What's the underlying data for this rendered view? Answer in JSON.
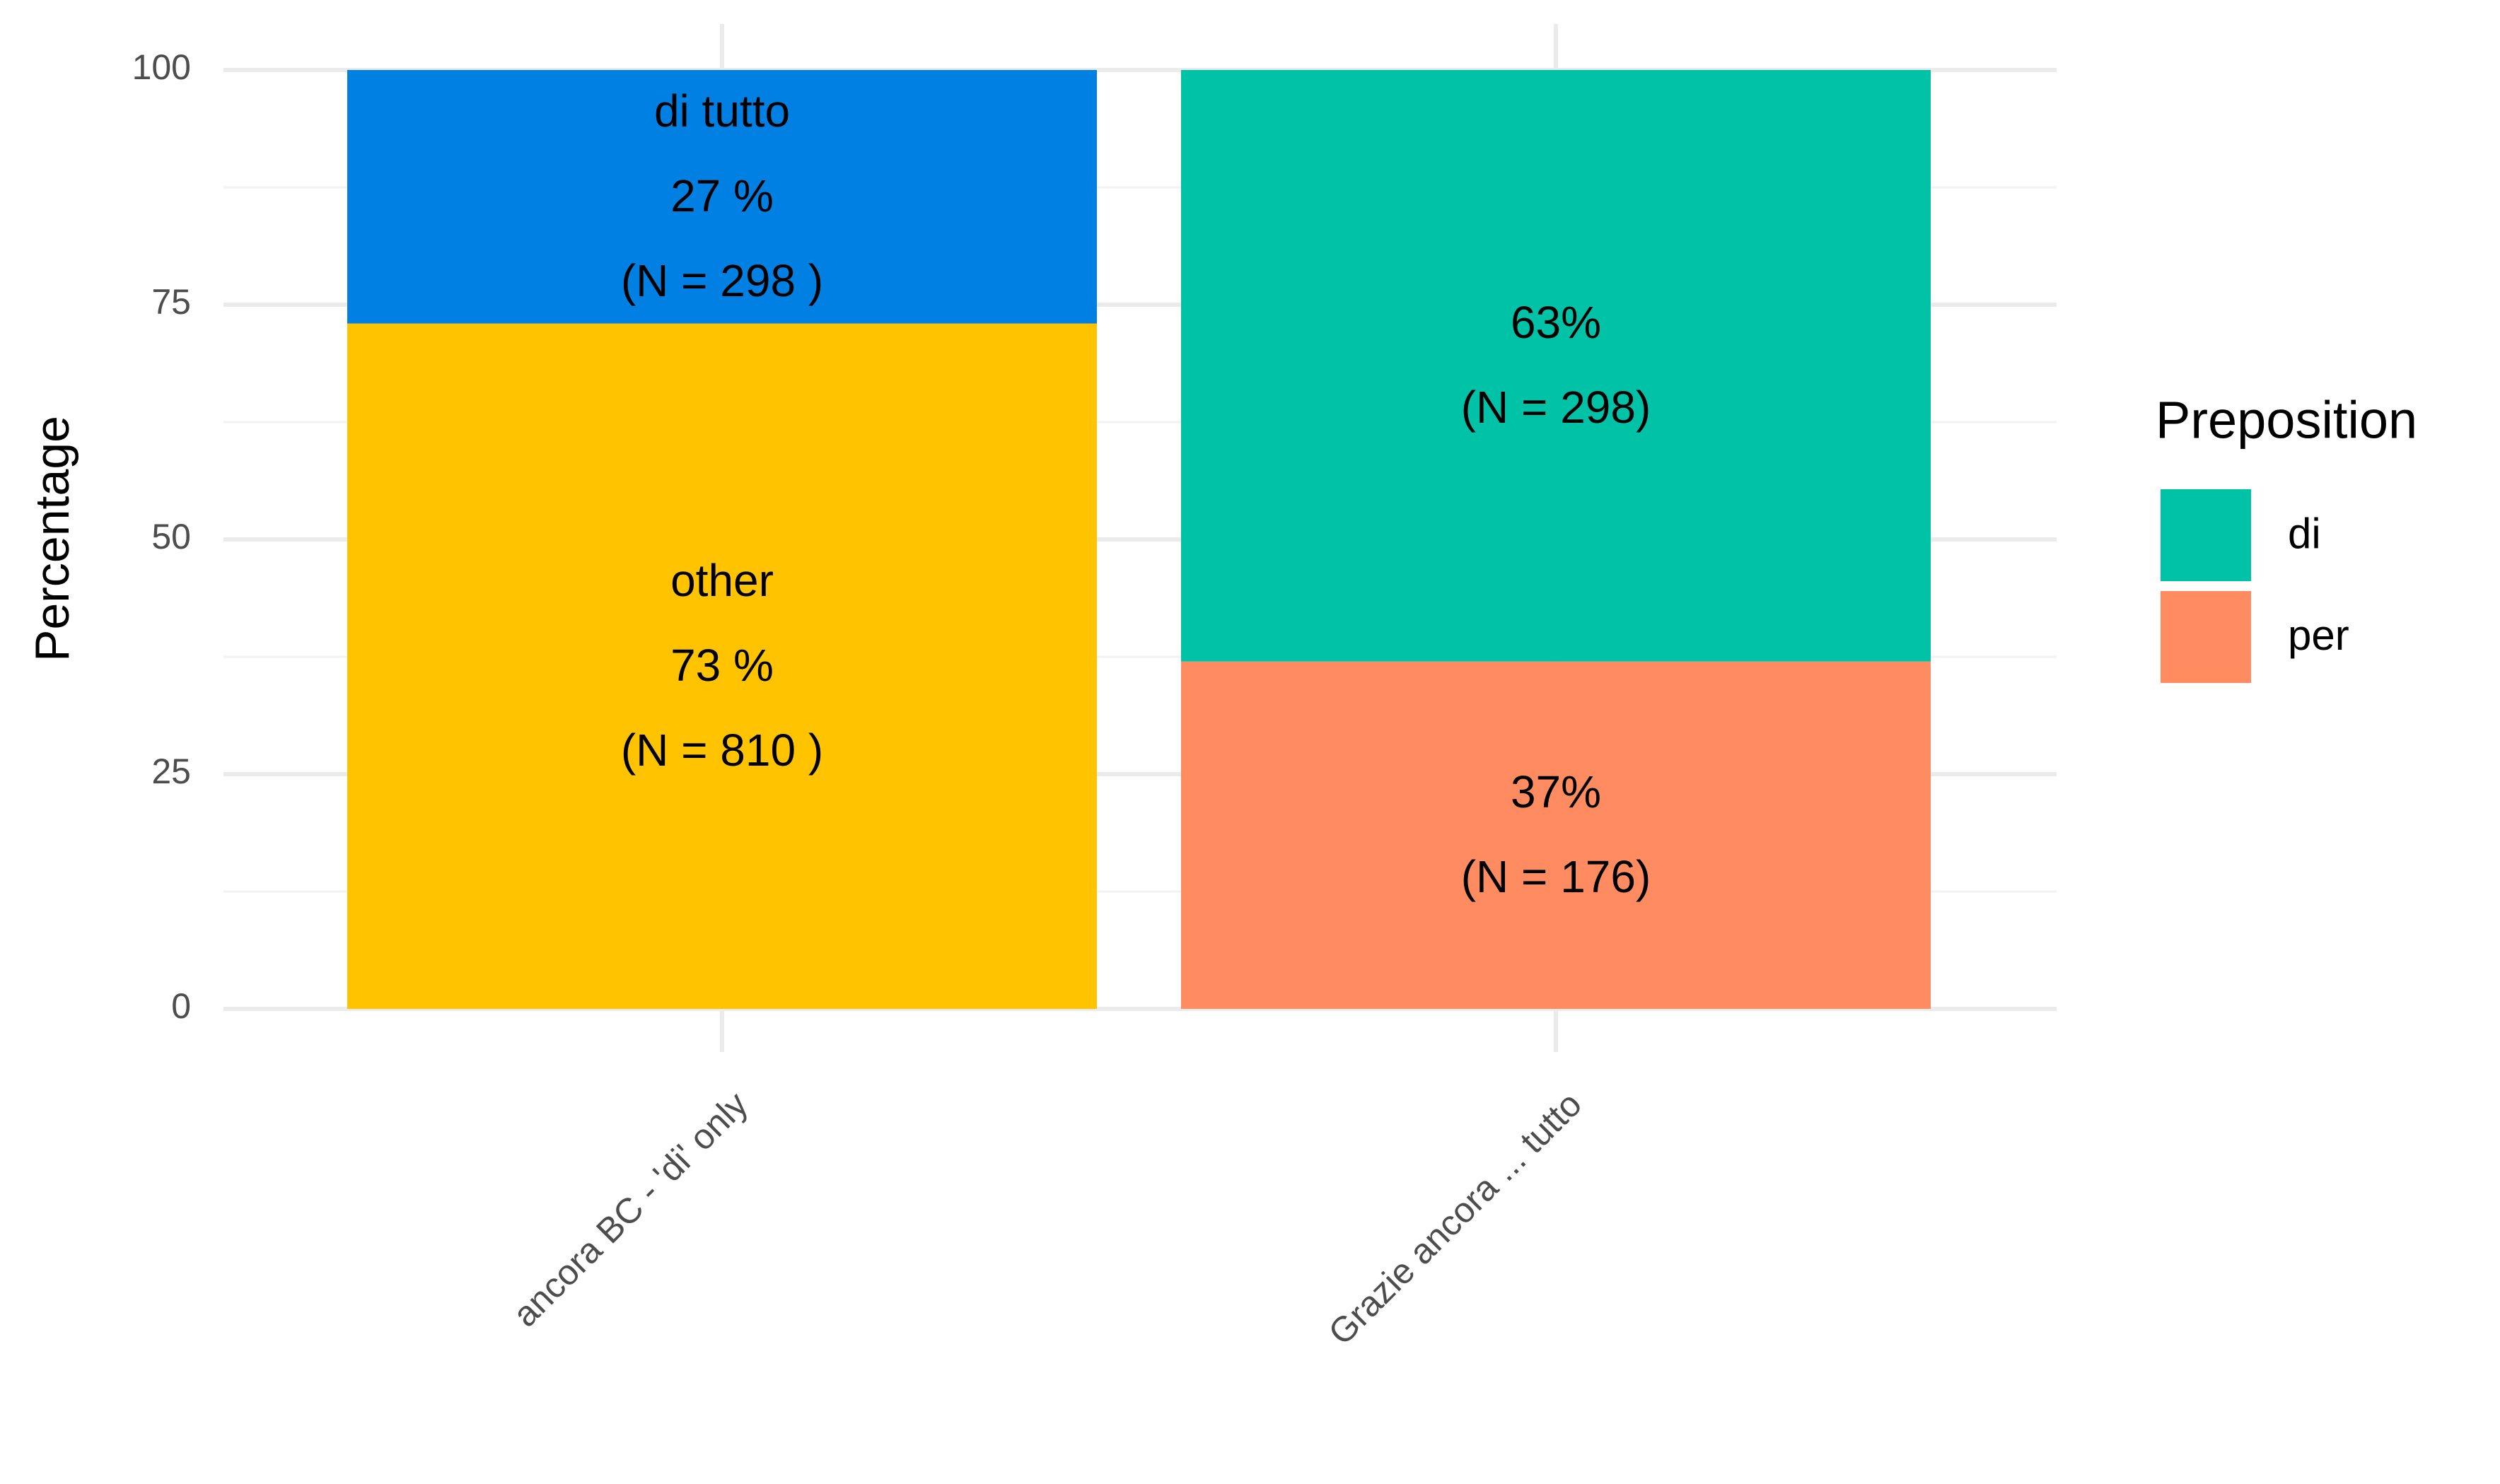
{
  "chart_data": {
    "type": "stacked_bar",
    "categories": [
      "ancora BC - 'di' only",
      "Grazie ancora ... tutto"
    ],
    "series": [
      {
        "name": "di tutto",
        "color": "#0080e3",
        "legend": false,
        "values": [
          27,
          null
        ],
        "value_labels": [
          [
            "di tutto",
            "27 %",
            "(N =  298 )"
          ],
          null
        ]
      },
      {
        "name": "other",
        "color": "#ffc300",
        "legend": false,
        "values": [
          73,
          null
        ],
        "value_labels": [
          [
            "other",
            "73 %",
            "(N =  810 )"
          ],
          null
        ]
      },
      {
        "name": "di",
        "color": "#00c2a6",
        "legend": true,
        "values": [
          null,
          63
        ],
        "value_labels": [
          null,
          [
            "63%",
            "(N = 298)"
          ]
        ]
      },
      {
        "name": "per",
        "color": "#ff8c61",
        "legend": true,
        "values": [
          null,
          37
        ],
        "value_labels": [
          null,
          [
            "37%",
            "(N = 176)"
          ]
        ]
      }
    ],
    "y_label": "Percentage",
    "legend_title": "Preposition",
    "legend_position": "right",
    "ylim": [
      0,
      100
    ],
    "yticks": [
      0,
      25,
      50,
      75,
      100
    ],
    "grid": true
  }
}
